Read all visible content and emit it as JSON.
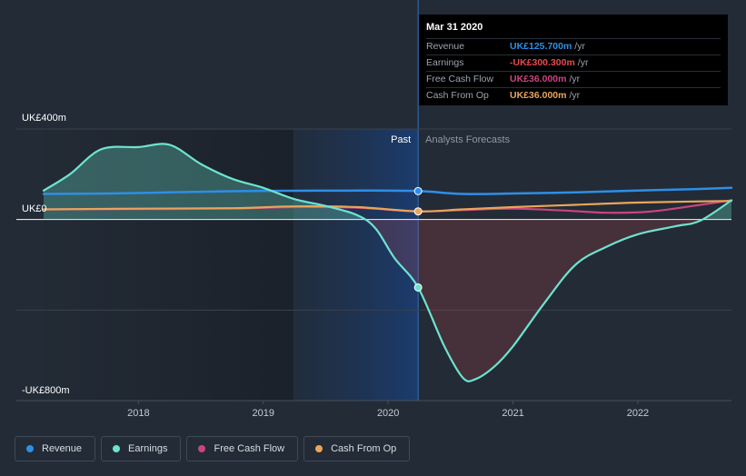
{
  "tooltip": {
    "date": "Mar 31 2020",
    "rows": [
      {
        "label": "Revenue",
        "value": "UK£125.700m",
        "unit": "/yr",
        "color": "#2d8fe6"
      },
      {
        "label": "Earnings",
        "value": "-UK£300.300m",
        "unit": "/yr",
        "color": "#e8494c"
      },
      {
        "label": "Free Cash Flow",
        "value": "UK£36.000m",
        "unit": "/yr",
        "color": "#c9457f"
      },
      {
        "label": "Cash From Op",
        "value": "UK£36.000m",
        "unit": "/yr",
        "color": "#e9a55a"
      }
    ]
  },
  "legend": [
    {
      "label": "Revenue",
      "color": "#2d8fe6"
    },
    {
      "label": "Earnings",
      "color": "#6de3cf"
    },
    {
      "label": "Free Cash Flow",
      "color": "#c9457f"
    },
    {
      "label": "Cash From Op",
      "color": "#e9a55a"
    }
  ],
  "chart_data": {
    "type": "area",
    "y_tick_labels": [
      "UK£400m",
      "UK£0",
      "-UK£800m"
    ],
    "x_tick_labels": [
      "2018",
      "2019",
      "2020",
      "2021",
      "2022"
    ],
    "x_ticks": [
      2018.0,
      2019.0,
      2020.0,
      2021.0,
      2022.0
    ],
    "ylim": [
      -800,
      400
    ],
    "xlim": [
      2017.24,
      2022.75
    ],
    "past_label": "Past",
    "forecast_label": "Analysts Forecasts",
    "divider_x": 2020.24,
    "shaded_start_x": 2019.24,
    "series": [
      {
        "name": "Revenue",
        "color": "#2d8fe6",
        "x": [
          2017.24,
          2017.75,
          2018.25,
          2018.75,
          2019.25,
          2019.75,
          2020.24,
          2020.6,
          2021.0,
          2021.5,
          2022.0,
          2022.5,
          2022.75
        ],
        "y": [
          113,
          115,
          120,
          125,
          127,
          128,
          125.7,
          113,
          115,
          120,
          128,
          135,
          140
        ]
      },
      {
        "name": "Earnings",
        "color": "#6de3cf",
        "x": [
          2017.24,
          2017.45,
          2017.7,
          2018.0,
          2018.25,
          2018.5,
          2018.75,
          2019.0,
          2019.25,
          2019.5,
          2019.75,
          2019.9,
          2020.05,
          2020.24,
          2020.45,
          2020.6,
          2020.7,
          2020.85,
          2021.0,
          2021.25,
          2021.5,
          2021.75,
          2022.0,
          2022.3,
          2022.5,
          2022.75
        ],
        "y": [
          128,
          200,
          310,
          320,
          330,
          245,
          180,
          140,
          90,
          60,
          20,
          -40,
          -170,
          -300.3,
          -560,
          -700,
          -705,
          -650,
          -560,
          -370,
          -200,
          -120,
          -65,
          -30,
          -5,
          85
        ]
      },
      {
        "name": "Free Cash Flow",
        "color": "#c9457f",
        "x": [
          2017.24,
          2018.0,
          2018.75,
          2019.25,
          2019.75,
          2020.24,
          2020.6,
          2021.0,
          2021.4,
          2021.75,
          2022.1,
          2022.5,
          2022.75
        ],
        "y": [
          45,
          46,
          48,
          55,
          52,
          36,
          42,
          48,
          40,
          30,
          35,
          65,
          85
        ]
      },
      {
        "name": "Cash From Op",
        "color": "#e9a55a",
        "x": [
          2017.24,
          2018.0,
          2018.75,
          2019.25,
          2019.75,
          2020.24,
          2020.6,
          2021.0,
          2021.5,
          2022.0,
          2022.5,
          2022.75
        ],
        "y": [
          45,
          48,
          50,
          58,
          55,
          36,
          45,
          55,
          65,
          75,
          80,
          82
        ]
      }
    ]
  }
}
